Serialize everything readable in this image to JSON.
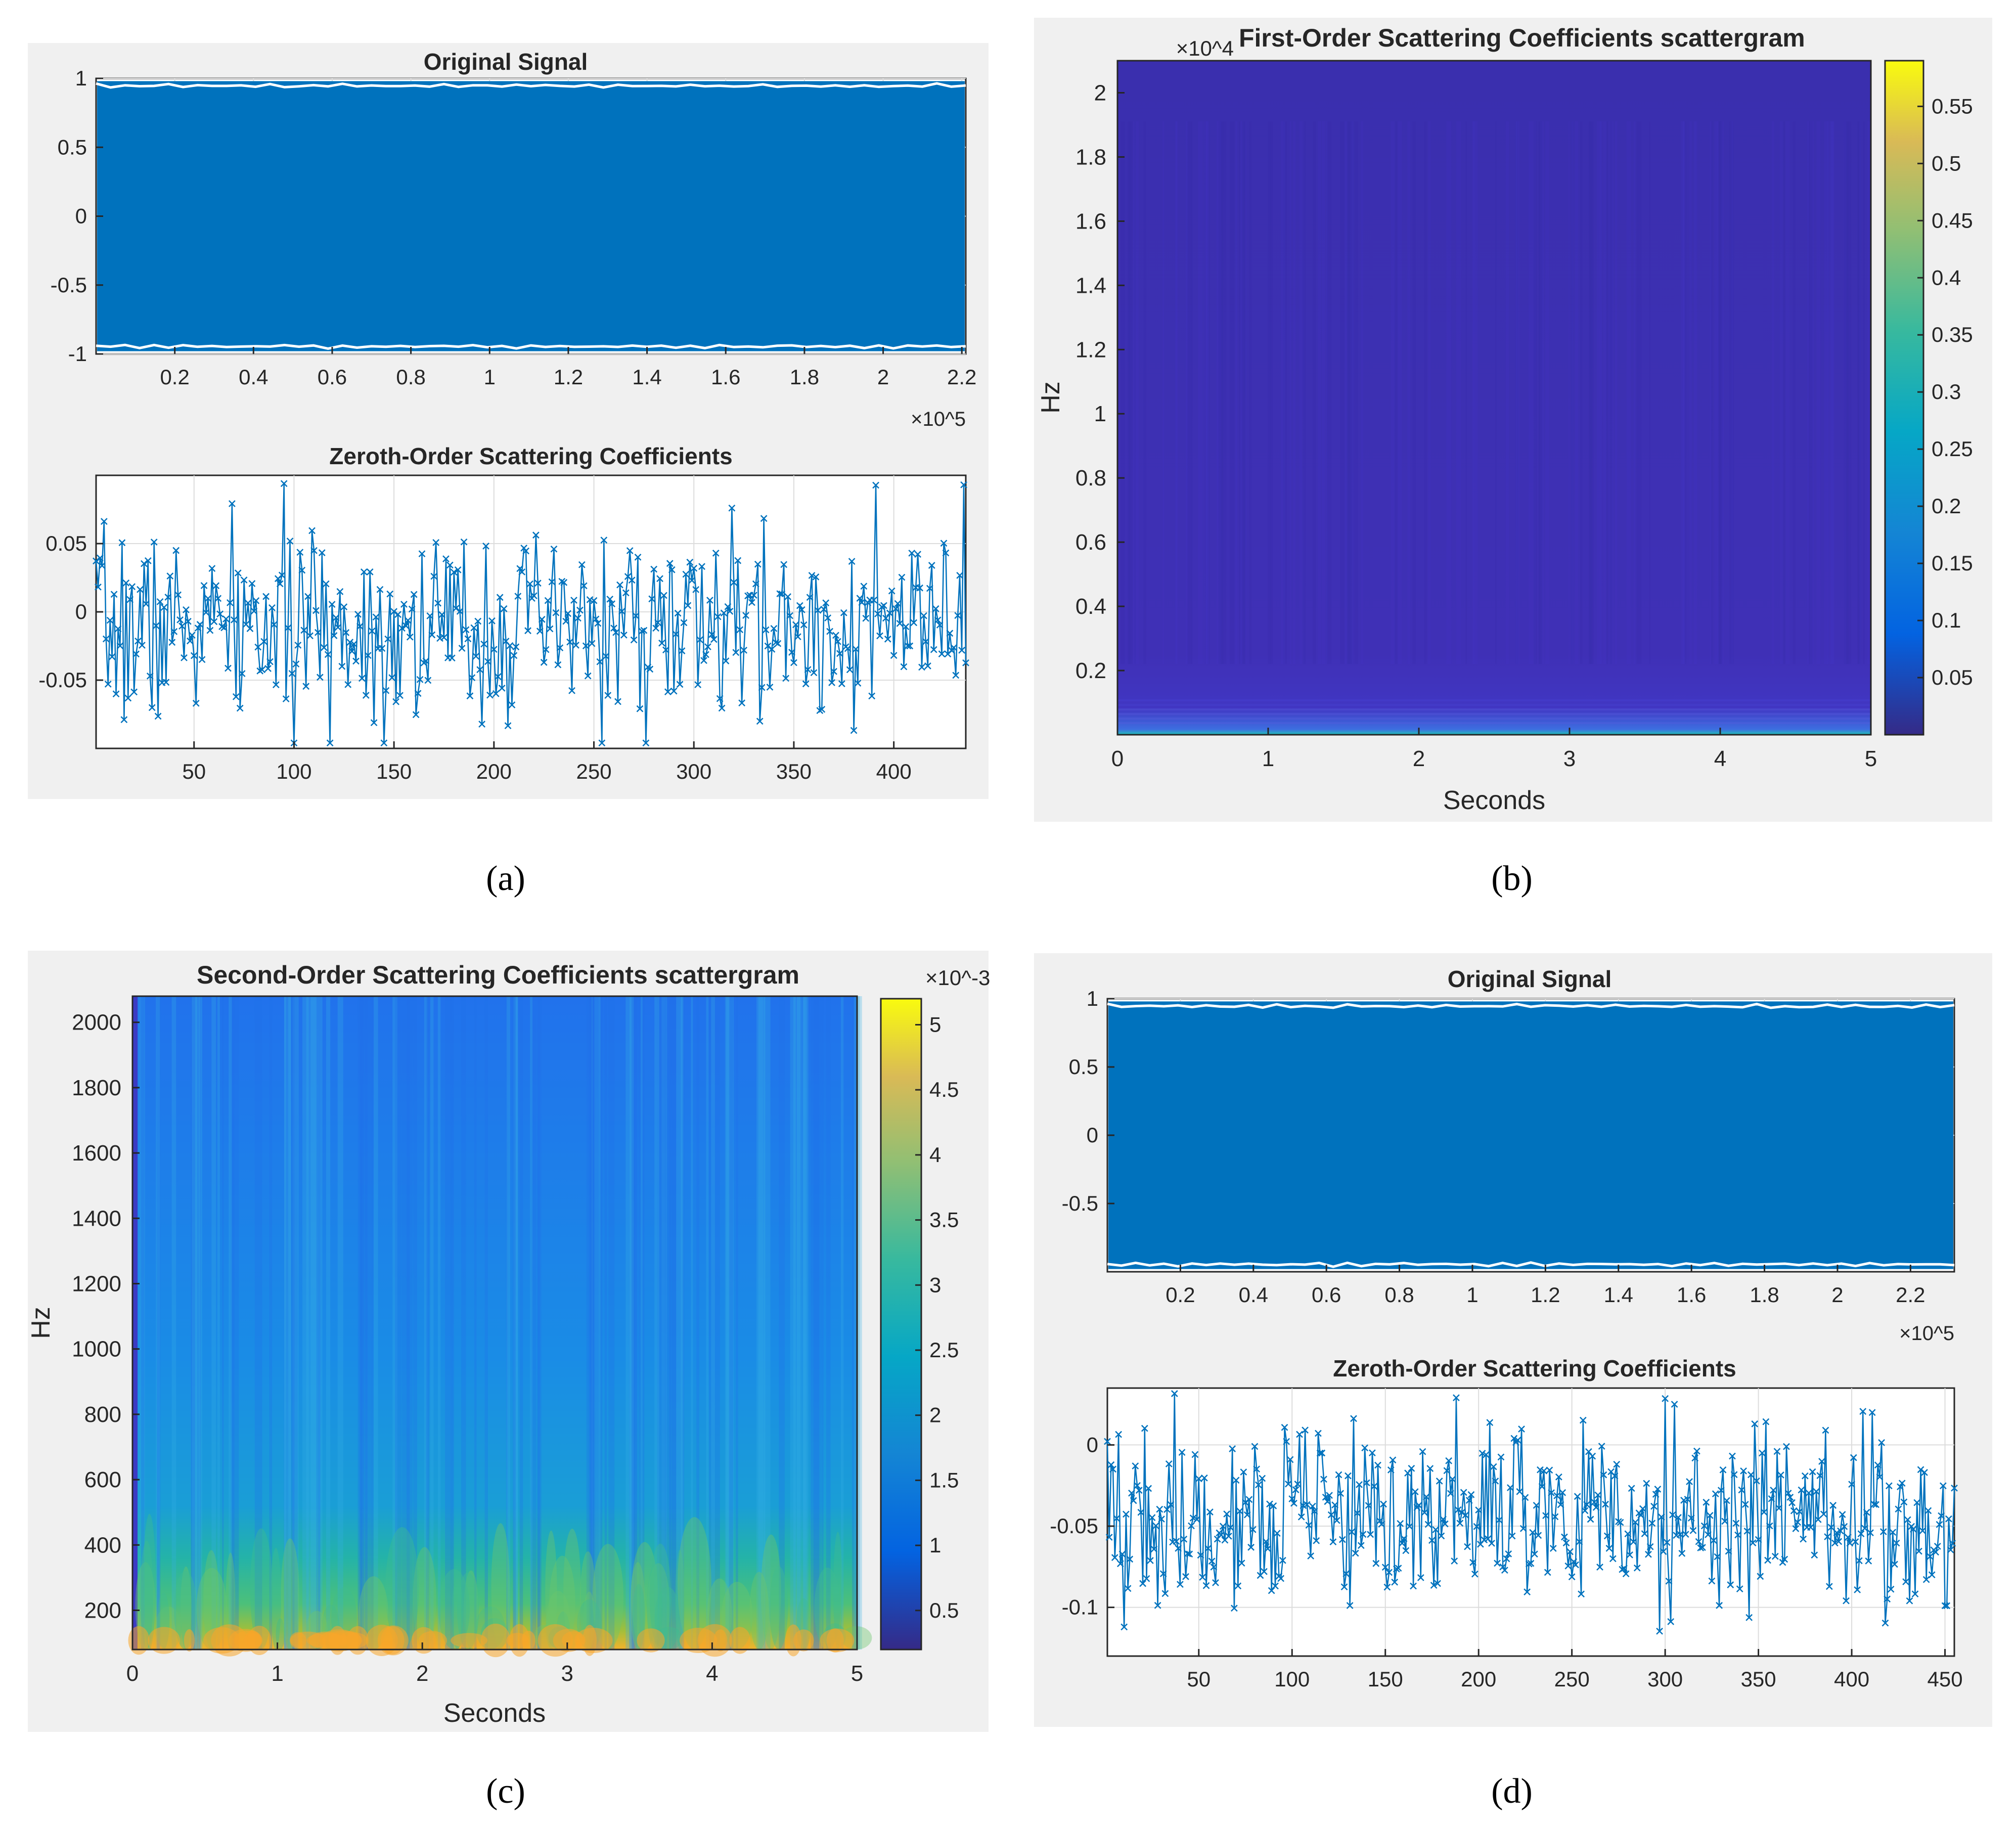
{
  "captions": [
    "(a)",
    "(b)",
    "(c)",
    "(d)"
  ],
  "colors": {
    "panel_bg": "#f0f0f0",
    "signal": "#0072bd",
    "grid": "#dcdcdc",
    "axis": "#262626",
    "first_order_bg": "#3a2fb0"
  },
  "chart_data": [
    {
      "id": "a-original",
      "type": "area",
      "title": "Original Signal",
      "xlim": [
        0,
        221000
      ],
      "ylim": [
        -1,
        1
      ],
      "x_ticks": [
        "0.2",
        "0.4",
        "0.6",
        "0.8",
        "1",
        "1.2",
        "1.4",
        "1.6",
        "1.8",
        "2",
        "2.2"
      ],
      "y_ticks": [
        "1",
        "0.5",
        "0",
        "-0.5",
        "-1"
      ],
      "x_exponent": "×10^5",
      "envelope": {
        "upper": 0.98,
        "lower": -0.98
      }
    },
    {
      "id": "a-zeroth",
      "type": "line",
      "title": "Zeroth-Order Scattering Coefficients",
      "xlim": [
        1,
        436
      ],
      "ylim": [
        -0.1,
        0.1
      ],
      "marker": "x",
      "x_ticks": [
        "50",
        "100",
        "150",
        "200",
        "250",
        "300",
        "350",
        "400"
      ],
      "y_ticks": [
        "0.05",
        "0",
        "-0.05"
      ],
      "n_points": 436,
      "mean": -0.012,
      "seed": 7
    },
    {
      "id": "b-first-order",
      "type": "heatmap",
      "title": "First-Order Scattering Coefficients scattergram",
      "xlabel": "Seconds",
      "ylabel": "Hz",
      "xlim": [
        0,
        5
      ],
      "ylim": [
        0,
        21000
      ],
      "x_ticks": [
        "0",
        "1",
        "2",
        "3",
        "4",
        "5"
      ],
      "y_ticks": [
        "2",
        "1.8",
        "1.6",
        "1.4",
        "1.2",
        "1",
        "0.8",
        "0.6",
        "0.4",
        "0.2"
      ],
      "y_exponent": "×10^4",
      "colorbar": {
        "range": [
          0,
          0.59
        ],
        "ticks": [
          "0.55",
          "0.5",
          "0.45",
          "0.4",
          "0.35",
          "0.3",
          "0.25",
          "0.2",
          "0.15",
          "0.1",
          "0.05"
        ]
      }
    },
    {
      "id": "c-second-order",
      "type": "heatmap",
      "title": "Second-Order Scattering Coefficients scattergram",
      "xlabel": "Seconds",
      "ylabel": "Hz",
      "xlim": [
        0,
        5
      ],
      "ylim": [
        80,
        2080
      ],
      "x_ticks": [
        "0",
        "1",
        "2",
        "3",
        "4",
        "5"
      ],
      "y_ticks": [
        "2000",
        "1800",
        "1600",
        "1400",
        "1200",
        "1000",
        "800",
        "600",
        "400",
        "200"
      ],
      "colorbar": {
        "range": [
          0.0002,
          0.0052
        ],
        "exponent": "×10^-3",
        "ticks": [
          "5",
          "4.5",
          "4",
          "3.5",
          "3",
          "2.5",
          "2",
          "1.5",
          "1",
          "0.5"
        ]
      }
    },
    {
      "id": "d-original",
      "type": "area",
      "title": "Original Signal",
      "xlim": [
        0,
        232000
      ],
      "ylim": [
        -1,
        1
      ],
      "x_ticks": [
        "0.2",
        "0.4",
        "0.6",
        "0.8",
        "1",
        "1.2",
        "1.4",
        "1.6",
        "1.8",
        "2",
        "2.2"
      ],
      "y_ticks": [
        "1",
        "0.5",
        "0",
        "-0.5"
      ],
      "x_exponent": "×10^5",
      "envelope": {
        "upper": 0.98,
        "lower": -0.98
      }
    },
    {
      "id": "d-zeroth",
      "type": "line",
      "title": "Zeroth-Order Scattering Coefficients",
      "xlim": [
        1,
        455
      ],
      "ylim": [
        -0.13,
        0.035
      ],
      "marker": "x",
      "x_ticks": [
        "50",
        "100",
        "150",
        "200",
        "250",
        "300",
        "350",
        "400",
        "450"
      ],
      "y_ticks": [
        "0",
        "-0.05",
        "-0.1"
      ],
      "n_points": 455,
      "mean": -0.045,
      "seed": 19
    }
  ]
}
